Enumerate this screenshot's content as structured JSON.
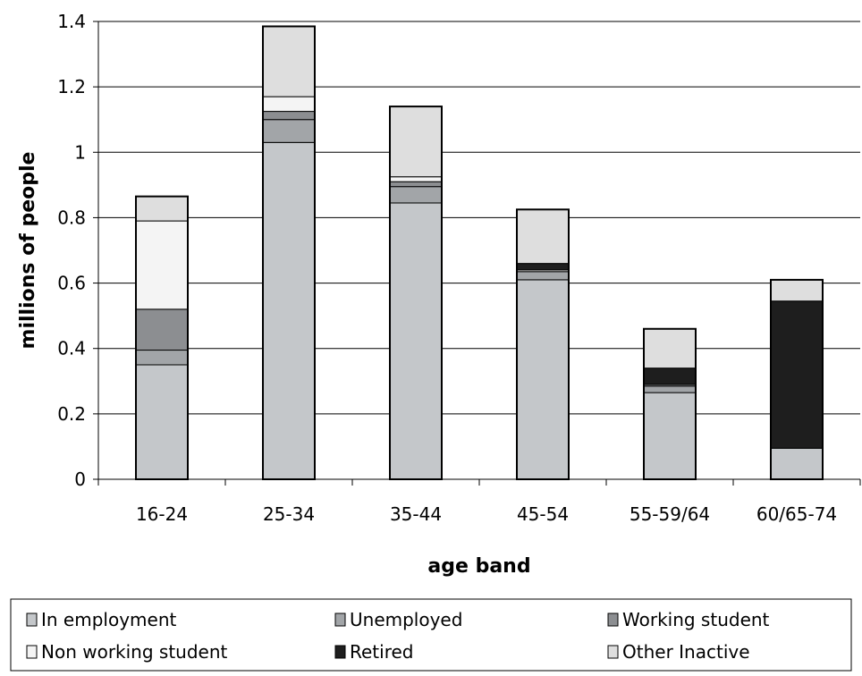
{
  "chart_data": {
    "type": "bar",
    "stacked": true,
    "title": "",
    "xlabel": "age band",
    "ylabel": "millions of people",
    "ylim": [
      0,
      1.4
    ],
    "yticks": [
      "0",
      "0.2",
      "0.4",
      "0.6",
      "0.8",
      "1",
      "1.2",
      "1.4"
    ],
    "grid": true,
    "legend_position": "bottom",
    "categories": [
      "16-24",
      "25-34",
      "35-44",
      "45-54",
      "55-59/64",
      "60/65-74"
    ],
    "series": [
      {
        "name": "In employment",
        "color": "#c4c7ca",
        "values": [
          0.35,
          1.03,
          0.845,
          0.61,
          0.265,
          0.095
        ]
      },
      {
        "name": "Unemployed",
        "color": "#a2a5a8",
        "values": [
          0.045,
          0.07,
          0.05,
          0.025,
          0.02,
          0.0
        ]
      },
      {
        "name": "Working student",
        "color": "#8c8e91",
        "values": [
          0.125,
          0.025,
          0.015,
          0.0,
          0.005,
          0.0
        ]
      },
      {
        "name": "Non working student",
        "color": "#f4f4f4",
        "values": [
          0.27,
          0.045,
          0.015,
          0.005,
          0.0,
          0.0
        ]
      },
      {
        "name": "Retired",
        "color": "#1e1e1e",
        "values": [
          0.0,
          0.0,
          0.0,
          0.02,
          0.05,
          0.45
        ]
      },
      {
        "name": "Other Inactive",
        "color": "#dedede",
        "values": [
          0.075,
          0.215,
          0.215,
          0.165,
          0.12,
          0.065
        ]
      }
    ]
  }
}
